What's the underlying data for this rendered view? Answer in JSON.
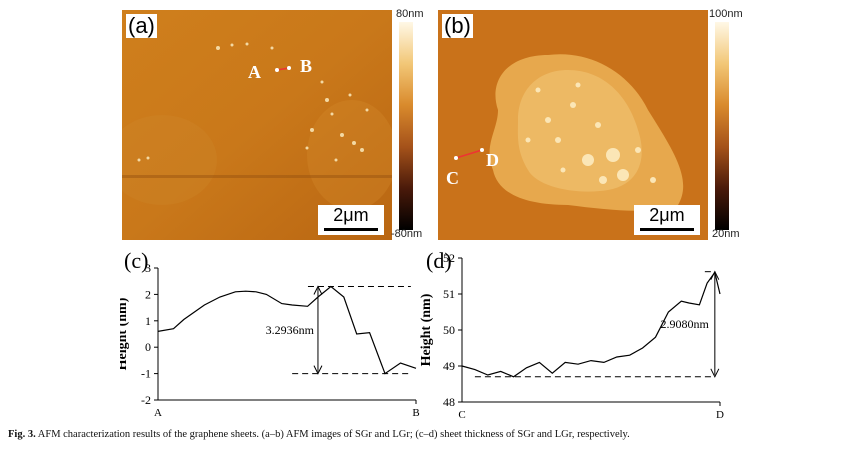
{
  "panels": {
    "a": {
      "label": "(a)",
      "point1": "A",
      "point2": "B",
      "scalebar": "2μm",
      "cb_top": "80nm",
      "cb_bottom": "-80nm"
    },
    "b": {
      "label": "(b)",
      "point1": "C",
      "point2": "D",
      "scalebar": "2μm",
      "cb_top": "100nm",
      "cb_bottom": "20nm"
    },
    "c": {
      "label": "(c)",
      "annotation": "3.2936nm"
    },
    "d": {
      "label": "(d)",
      "annotation": "2.9080nm"
    }
  },
  "caption": {
    "prefix": "Fig. 3.",
    "text": "AFM characterization results of the graphene sheets. (a–b) AFM images of SGr and LGr; (c–d) sheet thickness of SGr and LGr, respectively."
  },
  "chart_data": [
    {
      "type": "line",
      "title": "(c)",
      "xlabel": "",
      "ylabel": "Height (nm)",
      "x_tick_labels": [
        "A",
        "B"
      ],
      "yticks": [
        -2,
        -1,
        0,
        1,
        2,
        3
      ],
      "ylim": [
        -2,
        3
      ],
      "xlim": [
        0,
        1
      ],
      "grid": false,
      "series": [
        {
          "x": [
            0,
            0.06,
            0.1,
            0.18,
            0.24,
            0.3,
            0.34,
            0.38,
            0.42,
            0.48,
            0.52,
            0.58,
            0.62,
            0.67,
            0.72,
            0.77,
            0.82,
            0.88,
            0.94,
            1.0
          ],
          "values": [
            0.6,
            0.7,
            1.05,
            1.6,
            1.9,
            2.1,
            2.12,
            2.1,
            2.0,
            1.65,
            1.6,
            1.55,
            1.9,
            2.3,
            1.9,
            0.5,
            0.55,
            -1.0,
            -0.6,
            -0.8
          ]
        }
      ],
      "annotations": [
        {
          "text": "3.2936nm",
          "from": -1.0,
          "to": 2.3
        }
      ]
    },
    {
      "type": "line",
      "title": "(d)",
      "xlabel": "",
      "ylabel": "Height (nm)",
      "x_tick_labels": [
        "C",
        "D"
      ],
      "yticks": [
        48,
        49,
        50,
        51,
        52
      ],
      "ylim": [
        48,
        52
      ],
      "xlim": [
        0,
        1
      ],
      "grid": false,
      "series": [
        {
          "x": [
            0,
            0.05,
            0.1,
            0.15,
            0.2,
            0.25,
            0.3,
            0.35,
            0.4,
            0.45,
            0.5,
            0.55,
            0.6,
            0.65,
            0.7,
            0.75,
            0.8,
            0.85,
            0.88,
            0.92,
            0.95,
            0.98,
            1.0
          ],
          "values": [
            49.0,
            48.9,
            48.75,
            48.85,
            48.7,
            48.95,
            49.1,
            48.8,
            49.1,
            49.05,
            49.15,
            49.1,
            49.25,
            49.3,
            49.5,
            49.8,
            50.5,
            50.8,
            50.75,
            50.7,
            51.3,
            51.6,
            51.0
          ]
        }
      ],
      "annotations": [
        {
          "text": "2.9080nm",
          "from": 48.7,
          "to": 51.62
        }
      ]
    }
  ]
}
